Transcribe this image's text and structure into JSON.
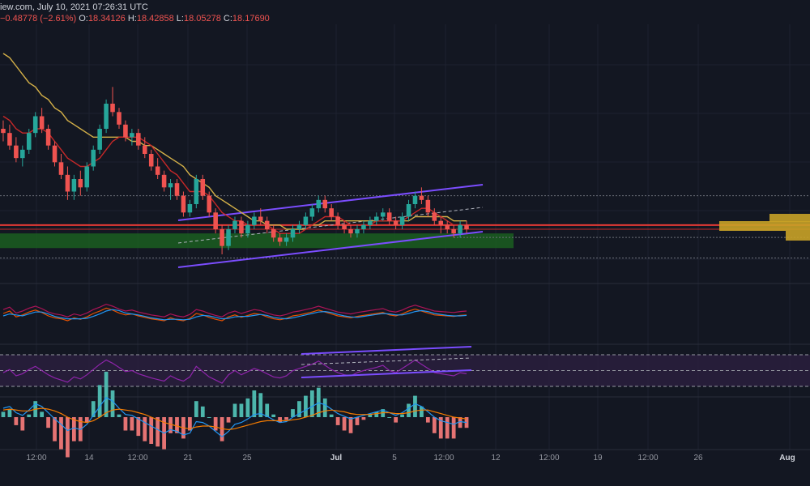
{
  "header": {
    "line1": "iew.com, July 10, 2021 07:26:31 UTC",
    "change": "−0.48778 (−2.61%)",
    "o_label": "O:",
    "o_value": "18.34126",
    "h_label": "H:",
    "h_value": "18.42858",
    "l_label": "L:",
    "l_value": "18.05278",
    "c_label": "C:",
    "c_value": "18.17690"
  },
  "colors": {
    "background": "#131722",
    "up": "#26a69a",
    "down": "#ef5350",
    "ema_fast": "#c62828",
    "ema_slow": "#d4b048",
    "channel": "#7b4dff",
    "support_zone": "#1b5e20",
    "rsi_band": "#2a1f3d",
    "rsi_line": "#8e24aa",
    "macd": "#2196f3",
    "signal": "#f57c00"
  },
  "chart_data": {
    "type": "candlestick",
    "x_ticks": [
      "12:00",
      "14",
      "12:00",
      "21",
      "25",
      "Jul",
      "5",
      "12:00",
      "12",
      "12:00",
      "19",
      "12:00",
      "26",
      "Aug"
    ],
    "price_levels": {
      "resistance": 18.3,
      "support_line": 18.2,
      "range_top": 19.0,
      "zone_top": 18.1,
      "zone_bottom": 17.75,
      "lower_dotted": 17.9
    },
    "ohlc_series": [
      [
        20.6,
        20.8,
        20.3,
        20.5
      ],
      [
        20.5,
        20.7,
        20.1,
        20.2
      ],
      [
        20.2,
        20.4,
        19.8,
        19.9
      ],
      [
        19.9,
        20.2,
        19.7,
        20.1
      ],
      [
        20.1,
        20.6,
        20.0,
        20.5
      ],
      [
        20.5,
        21.0,
        20.4,
        20.9
      ],
      [
        20.9,
        21.1,
        20.5,
        20.6
      ],
      [
        20.6,
        20.7,
        20.1,
        20.2
      ],
      [
        20.2,
        20.3,
        19.7,
        19.8
      ],
      [
        19.8,
        20.0,
        19.4,
        19.5
      ],
      [
        19.5,
        19.7,
        18.9,
        19.1
      ],
      [
        19.1,
        19.5,
        18.9,
        19.4
      ],
      [
        19.4,
        19.6,
        19.0,
        19.2
      ],
      [
        19.2,
        19.8,
        19.1,
        19.7
      ],
      [
        19.7,
        20.2,
        19.6,
        20.1
      ],
      [
        20.1,
        20.7,
        20.0,
        20.6
      ],
      [
        20.6,
        21.3,
        20.5,
        21.2
      ],
      [
        21.2,
        21.6,
        20.9,
        21.0
      ],
      [
        21.0,
        21.1,
        20.6,
        20.7
      ],
      [
        20.7,
        20.8,
        20.3,
        20.4
      ],
      [
        20.4,
        20.6,
        20.2,
        20.5
      ],
      [
        20.5,
        20.6,
        20.1,
        20.2
      ],
      [
        20.2,
        20.4,
        19.9,
        20.0
      ],
      [
        20.0,
        20.1,
        19.6,
        19.7
      ],
      [
        19.7,
        19.9,
        19.4,
        19.5
      ],
      [
        19.5,
        19.6,
        19.1,
        19.2
      ],
      [
        19.2,
        19.4,
        18.9,
        19.3
      ],
      [
        19.3,
        19.4,
        18.9,
        19.0
      ],
      [
        19.0,
        19.1,
        18.5,
        18.6
      ],
      [
        18.6,
        18.9,
        18.5,
        18.8
      ],
      [
        18.8,
        19.5,
        18.7,
        19.4
      ],
      [
        19.4,
        19.5,
        18.9,
        19.0
      ],
      [
        19.0,
        19.1,
        18.5,
        18.6
      ],
      [
        18.6,
        18.7,
        18.1,
        18.2
      ],
      [
        18.2,
        18.3,
        17.6,
        17.8
      ],
      [
        17.8,
        18.3,
        17.7,
        18.2
      ],
      [
        18.2,
        18.5,
        18.1,
        18.4
      ],
      [
        18.4,
        18.5,
        18.0,
        18.1
      ],
      [
        18.1,
        18.4,
        18.0,
        18.3
      ],
      [
        18.3,
        18.6,
        18.2,
        18.5
      ],
      [
        18.5,
        18.7,
        18.3,
        18.4
      ],
      [
        18.4,
        18.5,
        18.1,
        18.2
      ],
      [
        18.2,
        18.3,
        17.9,
        18.0
      ],
      [
        18.0,
        18.1,
        17.8,
        17.9
      ],
      [
        17.9,
        18.1,
        17.8,
        18.0
      ],
      [
        18.0,
        18.3,
        17.9,
        18.2
      ],
      [
        18.2,
        18.4,
        18.1,
        18.3
      ],
      [
        18.3,
        18.6,
        18.2,
        18.5
      ],
      [
        18.5,
        18.8,
        18.4,
        18.7
      ],
      [
        18.7,
        19.0,
        18.6,
        18.9
      ],
      [
        18.9,
        19.0,
        18.6,
        18.7
      ],
      [
        18.7,
        18.8,
        18.4,
        18.5
      ],
      [
        18.5,
        18.6,
        18.2,
        18.3
      ],
      [
        18.3,
        18.4,
        18.1,
        18.2
      ],
      [
        18.2,
        18.3,
        18.0,
        18.1
      ],
      [
        18.1,
        18.3,
        18.0,
        18.2
      ],
      [
        18.2,
        18.4,
        18.1,
        18.3
      ],
      [
        18.3,
        18.5,
        18.2,
        18.4
      ],
      [
        18.4,
        18.6,
        18.3,
        18.5
      ],
      [
        18.5,
        18.7,
        18.4,
        18.6
      ],
      [
        18.6,
        18.7,
        18.3,
        18.4
      ],
      [
        18.4,
        18.5,
        18.2,
        18.3
      ],
      [
        18.3,
        18.6,
        18.2,
        18.5
      ],
      [
        18.5,
        18.9,
        18.4,
        18.8
      ],
      [
        18.8,
        19.1,
        18.7,
        19.0
      ],
      [
        19.0,
        19.2,
        18.8,
        18.9
      ],
      [
        18.9,
        19.0,
        18.5,
        18.6
      ],
      [
        18.6,
        18.7,
        18.3,
        18.4
      ],
      [
        18.4,
        18.5,
        18.1,
        18.3
      ],
      [
        18.3,
        18.4,
        18.1,
        18.2
      ],
      [
        18.2,
        18.3,
        18.0,
        18.1
      ],
      [
        18.1,
        18.4,
        18.0,
        18.3
      ],
      [
        18.3,
        18.4,
        18.1,
        18.2
      ]
    ],
    "ema_fast_values": [
      20.9,
      20.8,
      20.6,
      20.5,
      20.5,
      20.6,
      20.6,
      20.5,
      20.3,
      20.1,
      19.9,
      19.8,
      19.7,
      19.7,
      19.8,
      19.9,
      20.1,
      20.3,
      20.4,
      20.4,
      20.4,
      20.4,
      20.3,
      20.2,
      20.0,
      19.8,
      19.6,
      19.5,
      19.3,
      19.1,
      19.1,
      19.1,
      19.0,
      18.8,
      18.6,
      18.5,
      18.4,
      18.4,
      18.3,
      18.3,
      18.3,
      18.3,
      18.2,
      18.1,
      18.1,
      18.1,
      18.1,
      18.2,
      18.3,
      18.4,
      18.5,
      18.5,
      18.5,
      18.4,
      18.3,
      18.3,
      18.3,
      18.3,
      18.4,
      18.4,
      18.4,
      18.4,
      18.4,
      18.5,
      18.6,
      18.7,
      18.7,
      18.6,
      18.5,
      18.4,
      18.3,
      18.3,
      18.3
    ],
    "ema_slow_values": [
      22.4,
      22.3,
      22.1,
      21.9,
      21.7,
      21.6,
      21.4,
      21.3,
      21.1,
      21.0,
      20.8,
      20.7,
      20.6,
      20.5,
      20.4,
      20.4,
      20.4,
      20.4,
      20.4,
      20.4,
      20.3,
      20.3,
      20.2,
      20.2,
      20.1,
      20.0,
      19.9,
      19.8,
      19.7,
      19.5,
      19.4,
      19.3,
      19.2,
      19.0,
      18.9,
      18.8,
      18.7,
      18.6,
      18.5,
      18.4,
      18.4,
      18.3,
      18.3,
      18.3,
      18.2,
      18.2,
      18.2,
      18.2,
      18.3,
      18.3,
      18.4,
      18.4,
      18.4,
      18.4,
      18.4,
      18.4,
      18.4,
      18.4,
      18.4,
      18.4,
      18.4,
      18.4,
      18.4,
      18.4,
      18.5,
      18.5,
      18.5,
      18.5,
      18.5,
      18.5,
      18.4,
      18.4,
      18.4
    ],
    "stoch_k": [
      55,
      60,
      48,
      52,
      58,
      62,
      57,
      50,
      46,
      44,
      40,
      46,
      43,
      48,
      55,
      60,
      66,
      62,
      56,
      52,
      54,
      50,
      47,
      44,
      42,
      40,
      46,
      42,
      40,
      45,
      55,
      52,
      47,
      43,
      40,
      48,
      52,
      47,
      51,
      55,
      53,
      48,
      44,
      42,
      45,
      50,
      52,
      55,
      58,
      62,
      58,
      54,
      50,
      48,
      46,
      49,
      51,
      53,
      55,
      57,
      52,
      50,
      54,
      60,
      64,
      60,
      56,
      52,
      51,
      50,
      49,
      51,
      52
    ],
    "stoch_d": [
      50,
      54,
      52,
      50,
      54,
      58,
      58,
      54,
      49,
      46,
      44,
      44,
      44,
      45,
      49,
      54,
      60,
      63,
      61,
      56,
      54,
      52,
      49,
      46,
      44,
      42,
      43,
      43,
      42,
      43,
      48,
      51,
      50,
      47,
      44,
      45,
      48,
      49,
      49,
      51,
      53,
      51,
      47,
      45,
      44,
      46,
      49,
      52,
      55,
      58,
      59,
      57,
      53,
      50,
      48,
      47,
      49,
      51,
      53,
      55,
      54,
      52,
      52,
      55,
      59,
      61,
      59,
      55,
      53,
      51,
      50,
      50,
      51
    ],
    "rsi_values": [
      46,
      52,
      40,
      44,
      52,
      58,
      50,
      42,
      36,
      32,
      28,
      38,
      34,
      42,
      52,
      62,
      70,
      64,
      56,
      48,
      50,
      44,
      40,
      36,
      33,
      30,
      40,
      34,
      30,
      38,
      58,
      48,
      38,
      32,
      26,
      42,
      50,
      42,
      48,
      54,
      50,
      44,
      38,
      36,
      40,
      50,
      54,
      58,
      62,
      68,
      60,
      52,
      46,
      42,
      40,
      46,
      50,
      53,
      56,
      60,
      50,
      46,
      54,
      62,
      70,
      62,
      54,
      46,
      44,
      42,
      40,
      46,
      44
    ],
    "rsi_levels": {
      "top": 80,
      "upper": 70,
      "mid": 50,
      "lower": 30,
      "bottom": 20
    },
    "macd_values": [
      0.1,
      0.12,
      0.05,
      0.02,
      0.08,
      0.15,
      0.12,
      0.05,
      -0.02,
      -0.08,
      -0.15,
      -0.12,
      -0.14,
      -0.08,
      0.02,
      0.12,
      0.22,
      0.18,
      0.1,
      0.03,
      0.02,
      -0.02,
      -0.06,
      -0.1,
      -0.14,
      -0.18,
      -0.14,
      -0.16,
      -0.2,
      -0.18,
      -0.05,
      -0.06,
      -0.1,
      -0.16,
      -0.22,
      -0.16,
      -0.08,
      -0.06,
      -0.02,
      0.03,
      0.04,
      0.01,
      -0.03,
      -0.06,
      -0.05,
      0.0,
      0.04,
      0.08,
      0.12,
      0.16,
      0.14,
      0.09,
      0.04,
      0.01,
      -0.02,
      0.0,
      0.02,
      0.04,
      0.06,
      0.08,
      0.05,
      0.02,
      0.05,
      0.1,
      0.15,
      0.12,
      0.06,
      0.0,
      -0.04,
      -0.06,
      -0.08,
      -0.05,
      -0.06
    ],
    "signal_values": [
      0.08,
      0.09,
      0.08,
      0.07,
      0.07,
      0.09,
      0.1,
      0.09,
      0.07,
      0.04,
      0.0,
      -0.03,
      -0.05,
      -0.06,
      -0.04,
      0.0,
      0.05,
      0.08,
      0.09,
      0.08,
      0.07,
      0.05,
      0.03,
      0.0,
      -0.03,
      -0.06,
      -0.08,
      -0.1,
      -0.12,
      -0.13,
      -0.11,
      -0.1,
      -0.1,
      -0.11,
      -0.13,
      -0.14,
      -0.13,
      -0.11,
      -0.09,
      -0.07,
      -0.05,
      -0.04,
      -0.04,
      -0.04,
      -0.04,
      -0.03,
      -0.02,
      0.0,
      0.02,
      0.05,
      0.07,
      0.08,
      0.07,
      0.06,
      0.04,
      0.03,
      0.03,
      0.03,
      0.04,
      0.05,
      0.05,
      0.04,
      0.04,
      0.05,
      0.07,
      0.08,
      0.08,
      0.06,
      0.04,
      0.02,
      0.0,
      -0.01,
      -0.02
    ]
  }
}
